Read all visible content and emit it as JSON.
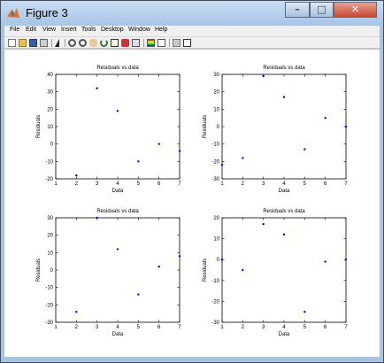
{
  "window": {
    "title": "Figure 3",
    "buttons": {
      "minimize": "–",
      "maximize": "□",
      "close": "✕"
    }
  },
  "menu": [
    "File",
    "Edit",
    "View",
    "Insert",
    "Tools",
    "Desktop",
    "Window",
    "Help"
  ],
  "toolbar_icons": [
    "new-figure-icon",
    "open-file-icon",
    "save-icon",
    "print-icon",
    "edit-plot-arrow-icon",
    "zoom-in-icon",
    "zoom-out-icon",
    "pan-icon",
    "rotate-3d-icon",
    "data-cursor-icon",
    "brush-icon",
    "link-plot-icon",
    "insert-colorbar-icon",
    "insert-legend-icon",
    "hide-plot-tools-icon",
    "show-plot-tools-icon"
  ],
  "colors": {
    "marker": "#0000ff",
    "close_button": "#c44a32",
    "titlebar": "#a8c4e6"
  },
  "chart_data": [
    {
      "type": "scatter",
      "title": "Residuals vs data",
      "xlabel": "Data",
      "ylabel": "Residuals",
      "xlim": [
        1,
        7
      ],
      "ylim": [
        -20,
        40
      ],
      "xticks": [
        1,
        2,
        3,
        4,
        5,
        6,
        7
      ],
      "yticks": [
        -20,
        -10,
        0,
        10,
        20,
        30,
        40
      ],
      "x": [
        2,
        3,
        4,
        5,
        6,
        7
      ],
      "y": [
        -18,
        32,
        19,
        -10,
        0,
        -4
      ]
    },
    {
      "type": "scatter",
      "title": "Residuals vs data",
      "xlabel": "Data",
      "ylabel": "Residuals",
      "xlim": [
        1,
        7
      ],
      "ylim": [
        -30,
        30
      ],
      "xticks": [
        1,
        2,
        3,
        4,
        5,
        6,
        7
      ],
      "yticks": [
        -30,
        -20,
        -10,
        0,
        10,
        20,
        30
      ],
      "x": [
        1,
        2,
        3,
        4,
        5,
        6,
        7
      ],
      "y": [
        -22,
        -18,
        29,
        17,
        -13,
        5,
        0
      ]
    },
    {
      "type": "scatter",
      "title": "Residuals vs data",
      "xlabel": "Data",
      "ylabel": "Residuals",
      "xlim": [
        1,
        7
      ],
      "ylim": [
        -30,
        30
      ],
      "xticks": [
        1,
        2,
        3,
        4,
        5,
        6,
        7
      ],
      "yticks": [
        -30,
        -20,
        -10,
        0,
        10,
        20,
        30
      ],
      "x": [
        2,
        3,
        4,
        5,
        6,
        7
      ],
      "y": [
        -24,
        30,
        12,
        -14,
        2,
        8
      ]
    },
    {
      "type": "scatter",
      "title": "Residuals vs data",
      "xlabel": "Data",
      "ylabel": "Residuals",
      "xlim": [
        1,
        7
      ],
      "ylim": [
        -30,
        20
      ],
      "xticks": [
        1,
        2,
        3,
        4,
        5,
        6,
        7
      ],
      "yticks": [
        -30,
        -20,
        -10,
        0,
        10,
        20
      ],
      "x": [
        1,
        2,
        3,
        4,
        5,
        6,
        7
      ],
      "y": [
        0,
        -5,
        17,
        12,
        -25,
        -1,
        0
      ]
    }
  ]
}
